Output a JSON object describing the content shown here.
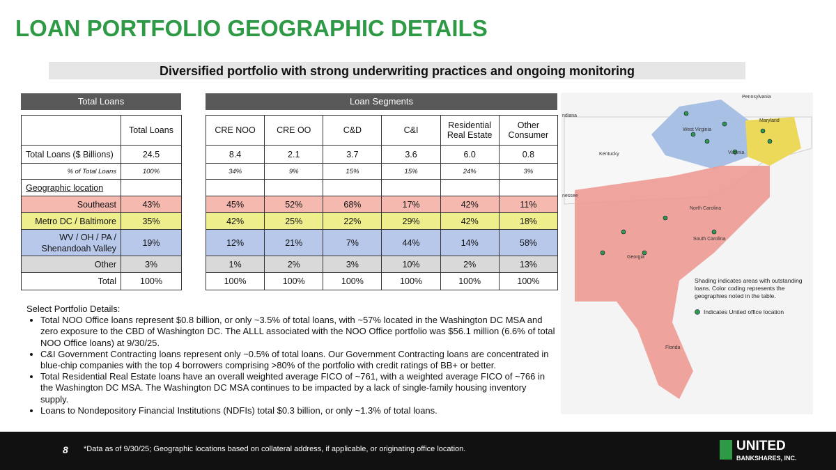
{
  "title": "LOAN PORTFOLIO GEOGRAPHIC DETAILS",
  "subtitle": "Diversified portfolio with strong underwriting practices and ongoing monitoring",
  "total_heading": "Total Loans",
  "segments_heading": "Loan Segments",
  "total_column": "Total Loans",
  "segment_columns": [
    "CRE NOO",
    "CRE OO",
    "C&D",
    "C&I",
    "Residential Real Estate",
    "Other Consumer"
  ],
  "rows": [
    {
      "label": "Total Loans ($ Billions)",
      "total": "24.5",
      "segments": [
        "8.4",
        "2.1",
        "3.7",
        "3.6",
        "6.0",
        "0.8"
      ]
    },
    {
      "label": "% of Total Loans",
      "total": "100%",
      "segments": [
        "34%",
        "9%",
        "15%",
        "15%",
        "24%",
        "3%"
      ]
    },
    {
      "label": "Geographic location"
    },
    {
      "label": "Southeast",
      "total": "43%",
      "segments": [
        "45%",
        "52%",
        "68%",
        "17%",
        "42%",
        "11%"
      ]
    },
    {
      "label": "Metro DC / Baltimore",
      "total": "35%",
      "segments": [
        "42%",
        "25%",
        "22%",
        "29%",
        "42%",
        "18%"
      ]
    },
    {
      "label": "WV / OH / PA / Shenandoah Valley",
      "total": "19%",
      "segments": [
        "12%",
        "21%",
        "7%",
        "44%",
        "14%",
        "58%"
      ]
    },
    {
      "label": "Other",
      "total": "3%",
      "segments": [
        "1%",
        "2%",
        "3%",
        "10%",
        "2%",
        "13%"
      ]
    },
    {
      "label": "Total",
      "total": "100%",
      "segments": [
        "100%",
        "100%",
        "100%",
        "100%",
        "100%",
        "100%"
      ]
    }
  ],
  "details": {
    "heading": "Select Portfolio Details:",
    "items": [
      "Total NOO Office loans represent $0.8 billion, or only ~3.5% of total loans, with ~57% located in the Washington DC MSA and zero exposure to the CBD of Washington DC. The ALLL associated with the NOO Office portfolio was $56.1 million (6.6% of total NOO Office loans) at 9/30/25.",
      "C&I Government Contracting loans represent only ~0.5% of total loans. Our Government Contracting loans are concentrated in blue-chip companies with the top 4 borrowers comprising >80% of the portfolio with credit ratings of BB+ or better.",
      "Total Residential Real Estate loans have an overall weighted average FICO of ~761, with a weighted average FICO of ~766 in the Washington DC MSA. The Washington DC MSA continues to be impacted by a lack of single-family housing inventory supply.",
      "Loans to Nondepository Financial Institutions (NDFIs) total $0.3 billion, or only ~1.3% of total loans."
    ]
  },
  "map": {
    "labels": [
      "Pennsylvania",
      "ndiana",
      "Kentucky",
      "West Virginia",
      "Maryland",
      "Virginia",
      "nessee",
      "North Carolina",
      "South Carolina",
      "Georgia",
      "Florida"
    ],
    "shading_note": "Shading indicates areas with outstanding loans. Color coding represents the geographies noted in the table.",
    "office_note": "Indicates United office location"
  },
  "footer": {
    "page": "8",
    "note": "*Data as of 9/30/25; Geographic locations based on collateral address, if applicable, or originating office location.",
    "logo_top": "UNITED",
    "logo_bottom": "BANKSHARES, INC."
  }
}
